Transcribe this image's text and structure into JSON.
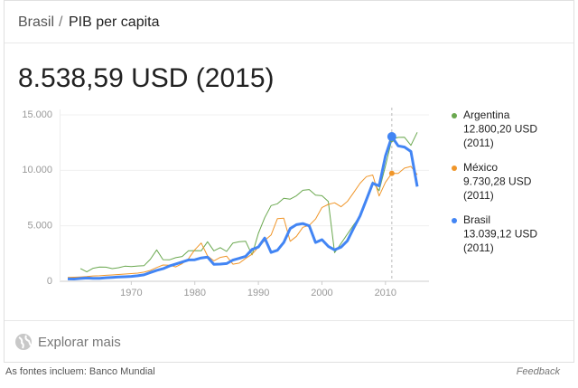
{
  "header": {
    "items": [
      "Brasil",
      "PIB per capita"
    ],
    "separator": "/"
  },
  "headline": "8.538,59 USD (2015)",
  "chart_data": {
    "type": "line",
    "x": [
      1960,
      1961,
      1962,
      1963,
      1964,
      1965,
      1966,
      1967,
      1968,
      1969,
      1970,
      1971,
      1972,
      1973,
      1974,
      1975,
      1976,
      1977,
      1978,
      1979,
      1980,
      1981,
      1982,
      1983,
      1984,
      1985,
      1986,
      1987,
      1988,
      1989,
      1990,
      1991,
      1992,
      1993,
      1994,
      1995,
      1996,
      1997,
      1998,
      1999,
      2000,
      2001,
      2002,
      2003,
      2004,
      2005,
      2006,
      2007,
      2008,
      2009,
      2010,
      2011,
      2012,
      2013,
      2014,
      2015
    ],
    "xlim": [
      1960,
      2015
    ],
    "xticks": [
      1970,
      1980,
      1990,
      2000,
      2010
    ],
    "ylim": [
      0,
      15000
    ],
    "yticks": [
      0,
      {
        "value": 5000,
        "label": "5.000"
      },
      {
        "value": 10000,
        "label": "10.000"
      },
      {
        "value": 15000,
        "label": "15.000"
      }
    ],
    "grid": true,
    "series": [
      {
        "name": "Argentina",
        "color": "#6aa84f",
        "values": [
          null,
          null,
          1150,
          850,
          1170,
          1280,
          1270,
          1140,
          1220,
          1360,
          1320,
          1380,
          1400,
          1990,
          2830,
          1950,
          1930,
          2130,
          2230,
          2750,
          2760,
          2750,
          3560,
          2750,
          3030,
          2690,
          3450,
          3560,
          3600,
          2380,
          4320,
          5730,
          6820,
          6990,
          7480,
          7400,
          7710,
          8200,
          8270,
          7770,
          7710,
          7200,
          2580,
          3410,
          4250,
          5080,
          5890,
          7190,
          8950,
          8160,
          10390,
          12800.2,
          12970,
          12980,
          12250,
          13430
        ],
        "highlight": {
          "x": 2011,
          "value": 12800.2,
          "label": "12.800,20 USD",
          "period": "(2011)"
        }
      },
      {
        "name": "México",
        "color": "#f0962a",
        "values": [
          350,
          370,
          390,
          420,
          480,
          500,
          540,
          570,
          610,
          650,
          690,
          730,
          820,
          980,
          1240,
          1470,
          1450,
          1300,
          1590,
          2030,
          2840,
          3450,
          2280,
          1840,
          2150,
          2270,
          1540,
          1640,
          2060,
          2440,
          3070,
          3680,
          4170,
          5650,
          5690,
          3600,
          4050,
          4870,
          5040,
          5610,
          6650,
          6930,
          7080,
          6720,
          7190,
          8000,
          8840,
          9430,
          9580,
          7690,
          8920,
          9730.28,
          9720,
          10200,
          10350,
          9600
        ],
        "highlight": {
          "x": 2011,
          "value": 9730.28,
          "label": "9.730,28 USD",
          "period": "(2011)"
        }
      },
      {
        "name": "Brasil",
        "color": "#4285f4",
        "values": [
          210,
          200,
          250,
          290,
          260,
          260,
          320,
          350,
          380,
          410,
          440,
          500,
          580,
          790,
          990,
          1130,
          1380,
          1560,
          1740,
          1920,
          1940,
          2100,
          2180,
          1530,
          1550,
          1600,
          1910,
          2070,
          2250,
          2870,
          3090,
          3900,
          2600,
          2800,
          3500,
          4750,
          5100,
          5200,
          5000,
          3500,
          3750,
          3150,
          2830,
          3070,
          3640,
          4790,
          5890,
          7350,
          8830,
          8600,
          11290,
          13039.12,
          12200,
          12100,
          11700,
          8538.59
        ],
        "highlight": {
          "x": 2011,
          "value": 13039.12,
          "label": "13.039,12 USD",
          "period": "(2011)"
        }
      }
    ]
  },
  "explore": "Explorar mais",
  "footer": {
    "sources": "As fontes incluem: Banco Mundial",
    "feedback": "Feedback"
  }
}
